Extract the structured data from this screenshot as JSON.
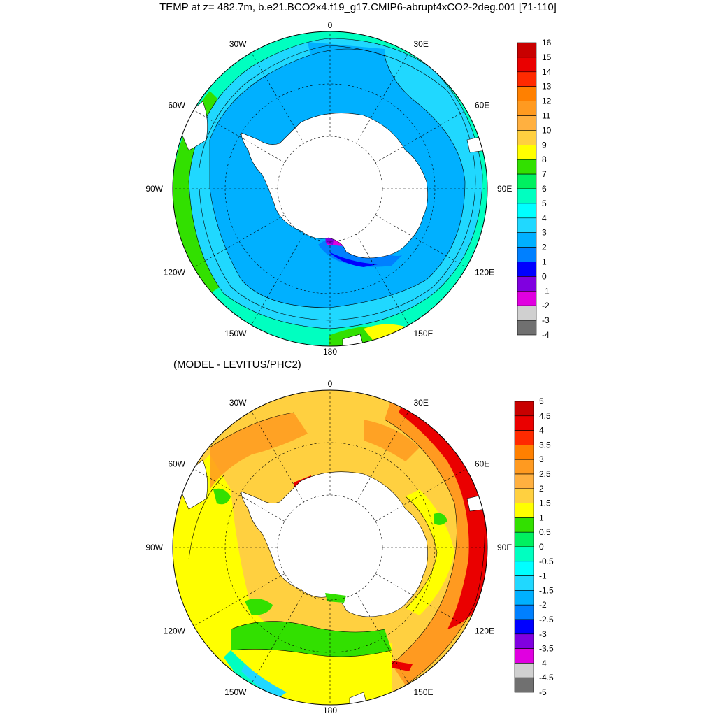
{
  "top_panel": {
    "title": "TEMP at z= 482.7m, b.e21.BCO2x4.f19_g17.CMIP6-abrupt4xCO2-2deg.001 [71-110]",
    "lon_labels": [
      "0",
      "30E",
      "60E",
      "90E",
      "120E",
      "150E",
      "180",
      "150W",
      "120W",
      "90W",
      "60W",
      "30W"
    ],
    "colorbar_labels": [
      "16",
      "15",
      "14",
      "13",
      "12",
      "11",
      "10",
      "9",
      "8",
      "7",
      "6",
      "5",
      "4",
      "3",
      "2",
      "1",
      "0",
      "-1",
      "-2",
      "-3",
      "-4"
    ],
    "colorbar_colors": [
      "#c80000",
      "#ea0000",
      "#ff2a00",
      "#ff8000",
      "#ff9a20",
      "#ffb040",
      "#ffd040",
      "#ffff00",
      "#32e000",
      "#00f060",
      "#00ffc0",
      "#00ffff",
      "#20d8ff",
      "#00b0ff",
      "#0080ff",
      "#0000ff",
      "#8000e0",
      "#e000e0",
      "#d0d0d0",
      "#707070"
    ]
  },
  "bottom_panel": {
    "title": "(MODEL - LEVITUS/PHC2)",
    "lon_labels": [
      "0",
      "30E",
      "60E",
      "90E",
      "120E",
      "150E",
      "180",
      "150W",
      "120W",
      "90W",
      "60W",
      "30W"
    ],
    "colorbar_labels": [
      "5",
      "4.5",
      "4",
      "3.5",
      "3",
      "2.5",
      "2",
      "1.5",
      "1",
      "0.5",
      "0",
      "-0.5",
      "-1",
      "-1.5",
      "-2",
      "-2.5",
      "-3",
      "-3.5",
      "-4",
      "-4.5",
      "-5"
    ],
    "colorbar_colors": [
      "#c80000",
      "#ea0000",
      "#ff2a00",
      "#ff8000",
      "#ff9a20",
      "#ffb040",
      "#ffd040",
      "#ffff00",
      "#32e000",
      "#00f060",
      "#00ffc0",
      "#00ffff",
      "#20d8ff",
      "#00b0ff",
      "#0080ff",
      "#0000ff",
      "#8000e0",
      "#e000e0",
      "#d0d0d0",
      "#707070"
    ]
  }
}
